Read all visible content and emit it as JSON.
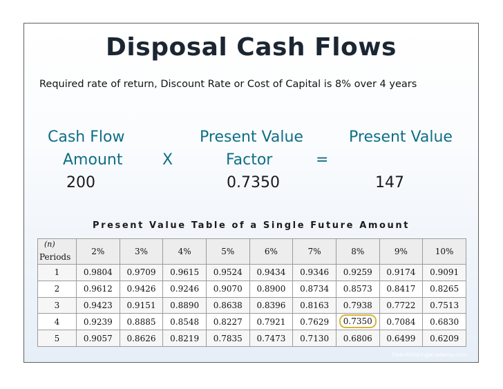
{
  "slide": {
    "title": "Disposal Cash Flows",
    "subtitle": "Required rate of return, Discount Rate or Cost of Capital is 8% over 4 years",
    "formula": {
      "cash_flow_label_1": "Cash Flow",
      "cash_flow_label_2": "Amount",
      "multiply_symbol": "X",
      "pv_factor_label_1": "Present Value",
      "pv_factor_label_2": "Factor",
      "equals_symbol": "=",
      "pv_label": "Present Value",
      "cash_flow_value": "200",
      "pv_factor_value": "0.7350",
      "pv_value": "147"
    },
    "table_title": "Present Value Table of a Single Future Amount",
    "footer": "Openthinkingacademy.com",
    "highlight_color": "#d6b53a"
  },
  "table": {
    "n_label": "(n)",
    "periods_label": "Periods",
    "rates": [
      "2%",
      "3%",
      "4%",
      "5%",
      "6%",
      "7%",
      "8%",
      "9%",
      "10%"
    ],
    "rows": [
      {
        "period": "1",
        "values": [
          "0.9804",
          "0.9709",
          "0.9615",
          "0.9524",
          "0.9434",
          "0.9346",
          "0.9259",
          "0.9174",
          "0.9091"
        ]
      },
      {
        "period": "2",
        "values": [
          "0.9612",
          "0.9426",
          "0.9246",
          "0.9070",
          "0.8900",
          "0.8734",
          "0.8573",
          "0.8417",
          "0.8265"
        ]
      },
      {
        "period": "3",
        "values": [
          "0.9423",
          "0.9151",
          "0.8890",
          "0.8638",
          "0.8396",
          "0.8163",
          "0.7938",
          "0.7722",
          "0.7513"
        ]
      },
      {
        "period": "4",
        "values": [
          "0.9239",
          "0.8885",
          "0.8548",
          "0.8227",
          "0.7921",
          "0.7629",
          "0.7350",
          "0.7084",
          "0.6830"
        ]
      },
      {
        "period": "5",
        "values": [
          "0.9057",
          "0.8626",
          "0.8219",
          "0.7835",
          "0.7473",
          "0.7130",
          "0.6806",
          "0.6499",
          "0.6209"
        ]
      }
    ],
    "highlight": {
      "row": 3,
      "col": 6
    }
  }
}
